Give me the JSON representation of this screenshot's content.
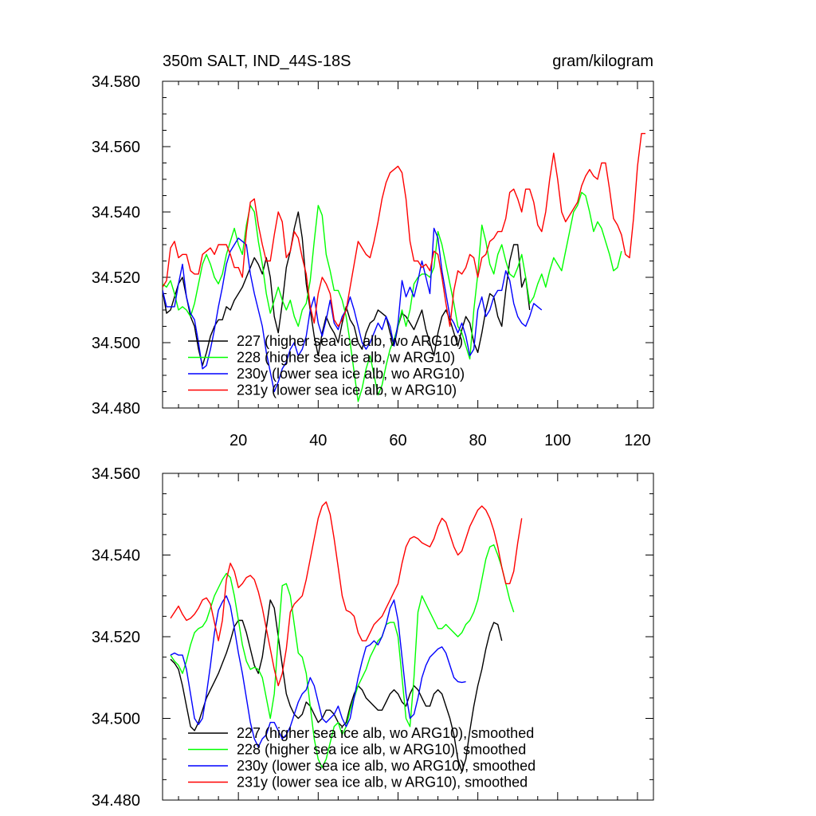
{
  "title_left": "350m SALT, IND_44S-18S",
  "title_right": "gram/kilogram",
  "chart_data": [
    {
      "type": "line",
      "panel": "top",
      "xlim": [
        1,
        124
      ],
      "ylim": [
        34.48,
        34.58
      ],
      "xticks": [
        20,
        40,
        60,
        80,
        100,
        120
      ],
      "xtick_labels": [
        "20",
        "40",
        "60",
        "80",
        "100",
        "120"
      ],
      "yticks": [
        34.48,
        34.5,
        34.52,
        34.54,
        34.56,
        34.58
      ],
      "ytick_labels": [
        "34.480",
        "34.500",
        "34.520",
        "34.540",
        "34.560",
        "34.580"
      ],
      "legend_position": "bottom-left",
      "series": [
        {
          "name": "227 (higher sea ice alb, wo ARG10)",
          "color": "#000000",
          "x_start": 1,
          "values": [
            34.516,
            34.509,
            34.51,
            34.514,
            34.518,
            34.52,
            34.514,
            34.508,
            34.505,
            34.498,
            34.493,
            34.497,
            34.502,
            34.505,
            34.507,
            34.507,
            34.511,
            34.51,
            34.513,
            34.515,
            34.517,
            34.52,
            34.523,
            34.526,
            34.524,
            34.521,
            34.526,
            34.52,
            34.508,
            34.503,
            34.512,
            34.523,
            34.528,
            34.535,
            34.54,
            34.532,
            34.518,
            34.51,
            34.502,
            34.496,
            34.503,
            34.508,
            34.505,
            34.503,
            34.5,
            34.506,
            34.511,
            34.507,
            34.505,
            34.5,
            34.498,
            34.503,
            34.506,
            34.507,
            34.51,
            34.509,
            34.508,
            34.503,
            34.499,
            34.505,
            34.509,
            34.508,
            34.506,
            34.504,
            34.507,
            34.51,
            34.504,
            34.5,
            34.496,
            34.503,
            34.508,
            34.51,
            34.507,
            34.503,
            34.499,
            34.504,
            34.508,
            34.506,
            34.5,
            34.497,
            34.503,
            34.51,
            34.515,
            34.514,
            34.508,
            34.505,
            34.516,
            34.525,
            34.53,
            34.53,
            34.517,
            34.52,
            34.51
          ]
        },
        {
          "name": "228 (higher sea ice alb, w ARG10)",
          "color": "#00ff00",
          "x_start": 1,
          "values": [
            34.518,
            34.517,
            34.519,
            34.515,
            34.51,
            34.511,
            34.51,
            34.508,
            34.512,
            34.518,
            34.524,
            34.527,
            34.524,
            34.52,
            34.518,
            34.521,
            34.527,
            34.531,
            34.535,
            34.53,
            34.527,
            34.536,
            34.542,
            34.54,
            34.531,
            34.524,
            34.515,
            34.509,
            34.513,
            34.517,
            34.513,
            34.51,
            34.513,
            34.508,
            34.505,
            34.51,
            34.512,
            34.519,
            34.531,
            34.542,
            34.539,
            34.527,
            34.522,
            34.516,
            34.516,
            34.513,
            34.508,
            34.5,
            34.491,
            34.482,
            34.486,
            34.492,
            34.496,
            34.49,
            34.484,
            34.487,
            34.493,
            34.498,
            34.501,
            34.505,
            34.51,
            34.505,
            34.51,
            34.518,
            34.52,
            34.521,
            34.521,
            34.52,
            34.523,
            34.534,
            34.53,
            34.524,
            34.518,
            34.512,
            34.505,
            34.503,
            34.499,
            34.495,
            34.51,
            34.521,
            34.536,
            34.531,
            34.524,
            34.521,
            34.527,
            34.53,
            34.525,
            34.521,
            34.52,
            34.523,
            34.527,
            34.52,
            34.512,
            34.514,
            34.518,
            34.521,
            34.517,
            34.522,
            34.526,
            34.524,
            34.522,
            34.528,
            34.534,
            34.54,
            34.542,
            34.546,
            34.545,
            34.54,
            34.534,
            34.537,
            34.535,
            34.531,
            34.527,
            34.522,
            34.523,
            34.528
          ]
        },
        {
          "name": "230y (lower sea ice alb, wo ARG10)",
          "color": "#0000ff",
          "x_start": 1,
          "values": [
            34.516,
            34.511,
            34.511,
            34.511,
            34.518,
            34.524,
            34.514,
            34.509,
            34.507,
            34.5,
            34.492,
            34.493,
            34.498,
            34.504,
            34.511,
            34.517,
            34.524,
            34.528,
            34.53,
            34.532,
            34.531,
            34.53,
            34.521,
            34.515,
            34.51,
            34.505,
            34.497,
            34.491,
            34.485,
            34.488,
            34.492,
            34.494,
            34.498,
            34.5,
            34.496,
            34.498,
            34.502,
            34.51,
            34.514,
            34.506,
            34.502,
            34.507,
            34.513,
            34.506,
            34.504,
            34.508,
            34.51,
            34.514,
            34.51,
            34.505,
            34.5,
            34.498,
            34.5,
            34.503,
            34.506,
            34.504,
            34.508,
            34.505,
            34.499,
            34.506,
            34.519,
            34.514,
            34.517,
            34.514,
            34.519,
            34.525,
            34.52,
            34.515,
            34.535,
            34.532,
            34.522,
            34.515,
            34.508,
            34.506,
            34.503,
            34.506,
            34.502,
            34.496,
            34.498,
            34.51,
            34.514,
            34.508,
            34.51,
            34.514,
            34.516,
            34.516,
            34.522,
            34.519,
            34.512,
            34.508,
            34.506,
            34.505,
            34.508,
            34.512,
            34.511,
            34.51
          ]
        },
        {
          "name": "231y (lower sea ice alb, w ARG10)",
          "color": "#ff0000",
          "x_start": 1,
          "values": [
            34.517,
            34.519,
            34.529,
            34.531,
            34.526,
            34.527,
            34.527,
            34.522,
            34.521,
            34.521,
            34.527,
            34.528,
            34.529,
            34.527,
            34.53,
            34.53,
            34.53,
            34.527,
            34.523,
            34.523,
            34.52,
            34.534,
            34.543,
            34.544,
            34.536,
            34.53,
            34.525,
            34.525,
            34.533,
            34.54,
            34.537,
            34.526,
            34.528,
            34.534,
            34.532,
            34.526,
            34.521,
            34.511,
            34.506,
            34.515,
            34.52,
            34.518,
            34.515,
            34.507,
            34.505,
            34.507,
            34.51,
            34.517,
            34.524,
            34.531,
            34.529,
            34.527,
            34.526,
            34.531,
            34.537,
            34.544,
            34.549,
            34.552,
            34.553,
            34.554,
            34.552,
            34.544,
            34.531,
            34.525,
            34.525,
            34.523,
            34.524,
            34.522,
            34.528,
            34.527,
            34.52,
            34.512,
            34.505,
            34.516,
            34.522,
            34.521,
            34.523,
            34.527,
            34.526,
            34.52,
            34.526,
            34.527,
            34.531,
            34.532,
            34.534,
            34.534,
            34.538,
            34.546,
            34.547,
            34.544,
            34.54,
            34.547,
            34.547,
            34.543,
            34.536,
            34.534,
            34.54,
            34.55,
            34.558,
            34.55,
            34.54,
            34.537,
            34.539,
            34.541,
            34.543,
            34.548,
            34.551,
            34.553,
            34.551,
            34.55,
            34.555,
            34.555,
            34.547,
            34.538,
            34.536,
            34.533,
            34.527,
            34.526,
            34.538,
            34.554,
            34.564,
            34.564
          ]
        }
      ]
    },
    {
      "type": "line",
      "panel": "bottom",
      "xlim": [
        1,
        124
      ],
      "ylim": [
        34.48,
        34.56
      ],
      "xticks": [
        20,
        40,
        60,
        80,
        100,
        120
      ],
      "xtick_labels": [],
      "yticks": [
        34.48,
        34.5,
        34.52,
        34.54,
        34.56
      ],
      "ytick_labels": [
        "34.480",
        "34.500",
        "34.520",
        "34.540",
        "34.560"
      ],
      "legend_position": "bottom-left",
      "series": [
        {
          "name": "227 (higher sea ice alb, wo ARG10), smoothed",
          "color": "#000000",
          "x_start": 3,
          "values": [
            34.5145,
            34.5135,
            34.512,
            34.508,
            34.503,
            34.498,
            34.497,
            34.499,
            34.502,
            34.505,
            34.507,
            34.509,
            34.511,
            34.5135,
            34.516,
            34.519,
            34.5225,
            34.524,
            34.524,
            34.521,
            34.517,
            34.513,
            34.511,
            34.515,
            34.522,
            34.529,
            34.527,
            34.52,
            34.513,
            34.506,
            34.503,
            34.501,
            34.5,
            34.501,
            34.504,
            34.503,
            34.501,
            34.499,
            34.5,
            34.502,
            34.502,
            34.501,
            34.499,
            34.498,
            34.499,
            34.503,
            34.506,
            34.508,
            34.507,
            34.505,
            34.504,
            34.503,
            34.502,
            34.502,
            34.504,
            34.506,
            34.507,
            34.506,
            34.504,
            34.503,
            34.506,
            34.508,
            34.507,
            34.505,
            34.503,
            34.503,
            34.506,
            34.507,
            34.506,
            34.503,
            34.5,
            34.496,
            34.49,
            34.487,
            34.49,
            34.497,
            34.503,
            34.508,
            34.512,
            34.517,
            34.521,
            34.5235,
            34.523,
            34.519
          ]
        },
        {
          "name": "228 (higher sea ice alb, w ARG10), smoothed",
          "color": "#00ff00",
          "x_start": 3,
          "values": [
            34.5155,
            34.514,
            34.513,
            34.511,
            34.514,
            34.518,
            34.521,
            34.522,
            34.5225,
            34.524,
            34.527,
            34.53,
            34.532,
            34.534,
            34.5355,
            34.5345,
            34.53,
            34.524,
            34.518,
            34.514,
            34.512,
            34.5125,
            34.512,
            34.51,
            34.505,
            34.5,
            34.506,
            34.52,
            34.5325,
            34.533,
            34.53,
            34.523,
            34.516,
            34.515,
            34.511,
            34.503,
            34.495,
            34.49,
            34.488,
            34.49,
            34.494,
            34.498,
            34.499,
            34.496,
            34.498,
            34.502,
            34.505,
            34.508,
            34.51,
            34.512,
            34.515,
            34.517,
            34.519,
            34.52,
            34.523,
            34.5235,
            34.5235,
            34.52,
            34.51,
            34.5,
            34.498,
            34.51,
            34.526,
            34.53,
            34.528,
            34.526,
            34.524,
            34.522,
            34.522,
            34.523,
            34.522,
            34.521,
            34.52,
            34.521,
            34.523,
            34.524,
            34.526,
            34.529,
            34.534,
            34.539,
            34.542,
            34.5425,
            34.54,
            34.537,
            34.533,
            34.529,
            34.526
          ]
        },
        {
          "name": "230y (lower sea ice alb, wo ARG10), smoothed",
          "color": "#0000ff",
          "x_start": 3,
          "values": [
            34.5155,
            34.516,
            34.5155,
            34.5155,
            34.512,
            34.506,
            34.5,
            34.4985,
            34.5,
            34.506,
            34.513,
            34.521,
            34.5265,
            34.5285,
            34.53,
            34.5275,
            34.522,
            34.516,
            34.511,
            34.505,
            34.499,
            34.495,
            34.493,
            34.495,
            34.496,
            34.499,
            34.499,
            34.497,
            34.495,
            34.496,
            34.498,
            34.501,
            34.504,
            34.506,
            34.507,
            34.51,
            34.508,
            34.504,
            34.5,
            34.499,
            34.5,
            34.501,
            34.503,
            34.5,
            34.498,
            34.5,
            34.505,
            34.51,
            34.514,
            34.5175,
            34.518,
            34.519,
            34.518,
            34.52,
            34.523,
            34.527,
            34.529,
            34.524,
            34.515,
            34.506,
            34.5,
            34.501,
            34.505,
            34.51,
            34.513,
            34.515,
            34.516,
            34.517,
            34.5175,
            34.516,
            34.513,
            34.51,
            34.509,
            34.5088,
            34.509
          ]
        },
        {
          "name": "231y (lower sea ice alb, w ARG10), smoothed",
          "color": "#ff0000",
          "x_start": 3,
          "values": [
            34.5245,
            34.526,
            34.5275,
            34.5255,
            34.524,
            34.5245,
            34.5255,
            34.527,
            34.529,
            34.5295,
            34.528,
            34.5235,
            34.519,
            34.524,
            34.534,
            34.538,
            34.536,
            34.532,
            34.533,
            34.5345,
            34.535,
            34.534,
            34.531,
            34.527,
            34.522,
            34.517,
            34.512,
            34.508,
            34.511,
            34.517,
            34.526,
            34.528,
            34.529,
            34.53,
            34.534,
            34.539,
            34.544,
            34.549,
            34.552,
            34.553,
            34.55,
            34.544,
            34.537,
            34.53,
            34.5265,
            34.526,
            34.525,
            34.521,
            34.519,
            34.519,
            34.521,
            34.523,
            34.524,
            34.525,
            34.527,
            34.529,
            34.531,
            34.533,
            34.538,
            34.542,
            34.544,
            34.5445,
            34.544,
            34.543,
            34.5425,
            34.542,
            34.544,
            34.547,
            34.549,
            34.548,
            34.545,
            34.542,
            34.54,
            34.541,
            34.544,
            34.547,
            34.549,
            34.551,
            34.552,
            34.551,
            34.549,
            34.546,
            34.542,
            34.537,
            34.533,
            34.533,
            34.536,
            34.543,
            34.549
          ]
        }
      ]
    }
  ]
}
